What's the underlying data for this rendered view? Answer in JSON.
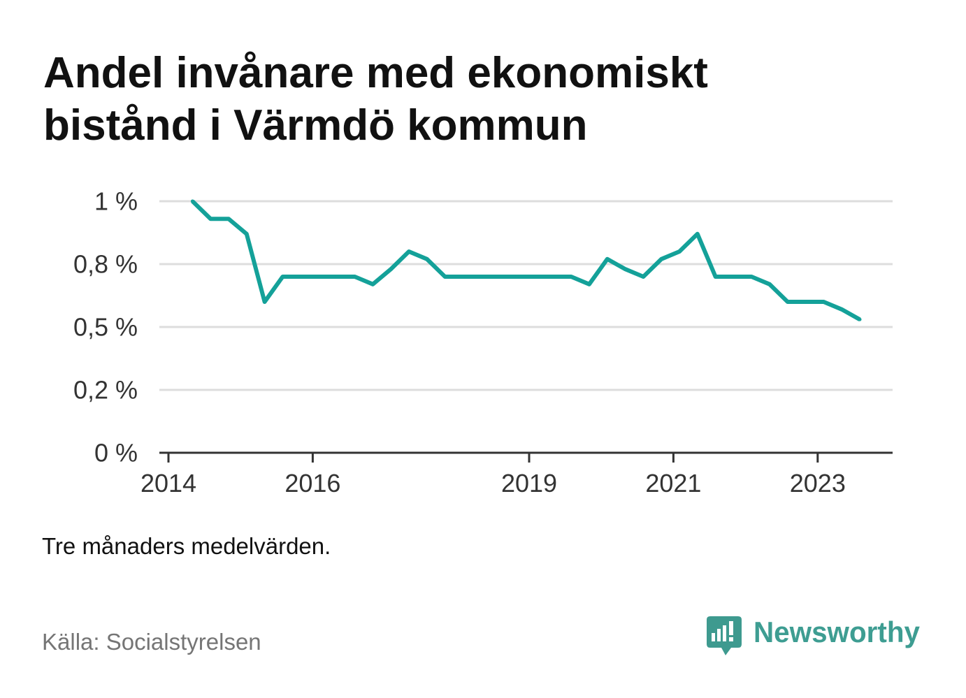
{
  "chart_data": {
    "type": "line",
    "title_lines": [
      "Andel invånare med ekonomiskt",
      "bistånd i Värmdö kommun"
    ],
    "xlabel": "",
    "ylabel": "",
    "note": "Tre månaders medelvärden.",
    "x": [
      "2014-05",
      "2014-08",
      "2014-11",
      "2015-02",
      "2015-05",
      "2015-08",
      "2015-11",
      "2016-02",
      "2016-05",
      "2016-08",
      "2016-11",
      "2017-02",
      "2017-05",
      "2017-08",
      "2017-11",
      "2018-02",
      "2018-05",
      "2018-08",
      "2018-11",
      "2019-02",
      "2019-05",
      "2019-08",
      "2019-11",
      "2020-02",
      "2020-05",
      "2020-08",
      "2020-11",
      "2021-02",
      "2021-05",
      "2021-08",
      "2021-11",
      "2022-02",
      "2022-05",
      "2022-08",
      "2022-11",
      "2023-02",
      "2023-05",
      "2023-08"
    ],
    "series": [
      {
        "values": [
          1.0,
          0.93,
          0.93,
          0.87,
          0.6,
          0.7,
          0.7,
          0.7,
          0.7,
          0.7,
          0.67,
          0.73,
          0.8,
          0.77,
          0.7,
          0.7,
          0.7,
          0.7,
          0.7,
          0.7,
          0.7,
          0.7,
          0.67,
          0.77,
          0.73,
          0.7,
          0.77,
          0.8,
          0.87,
          0.7,
          0.7,
          0.7,
          0.67,
          0.6,
          0.6,
          0.6,
          0.57,
          0.53
        ],
        "color": "#14a199"
      }
    ],
    "ylim": [
      0,
      1
    ],
    "y_ticks": [
      {
        "value": 1,
        "label": "1 %"
      },
      {
        "value": 0.75,
        "label": "0,8 %"
      },
      {
        "value": 0.5,
        "label": "0,5 %"
      },
      {
        "value": 0.25,
        "label": "0,2 %"
      },
      {
        "value": 0,
        "label": "0 %"
      }
    ],
    "x_ticks": [
      "2014",
      "2016",
      "2019",
      "2021",
      "2023"
    ],
    "grid": true,
    "legend": "none"
  },
  "source": "Källa: Socialstyrelsen",
  "brand": {
    "name": "Newsworthy",
    "color": "#3e9d92",
    "icon": "newsworthy-logo-icon"
  }
}
